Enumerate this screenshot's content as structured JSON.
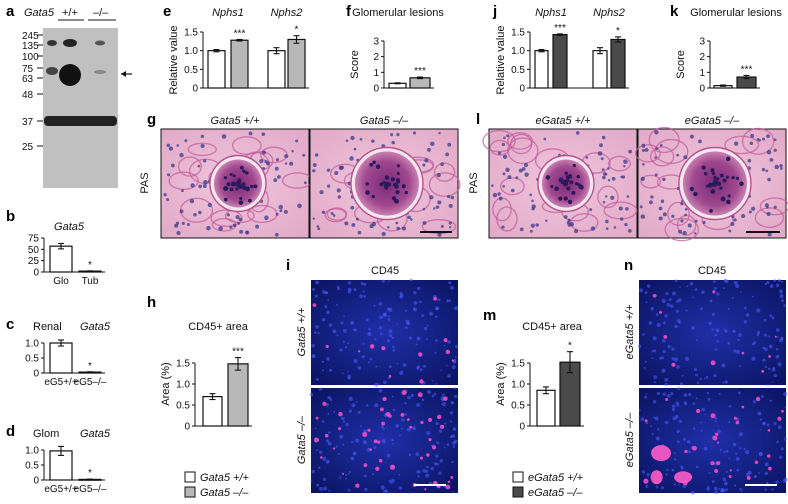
{
  "panels": {
    "a": {
      "label": "a",
      "genotype": "Gata5",
      "col_wt": "+/+",
      "col_ko": "–/–",
      "markers": [
        "245",
        "135",
        "100",
        "75",
        "63",
        "48",
        "37",
        "25"
      ]
    },
    "b": {
      "label": "b"
    },
    "c": {
      "label": "c"
    },
    "d": {
      "label": "d"
    },
    "e": {
      "label": "e"
    },
    "f": {
      "label": "f"
    },
    "g": {
      "label": "g",
      "side_label": "PAS",
      "img_left": "Gata5 +/+",
      "img_right": "Gata5 –/–"
    },
    "h": {
      "label": "h"
    },
    "i": {
      "label": "i",
      "title": "CD45",
      "row_top": "Gata5 +/+",
      "row_bottom": "Gata5 –/–"
    },
    "j": {
      "label": "j"
    },
    "k": {
      "label": "k"
    },
    "l": {
      "label": "l",
      "side_label": "PAS",
      "img_left": "eGata5 +/+",
      "img_right": "eGata5 –/–"
    },
    "m": {
      "label": "m"
    },
    "n": {
      "label": "n",
      "title": "CD45",
      "row_top": "eGata5 +/+",
      "row_bottom": "eGata5 –/–"
    }
  },
  "legend_h": [
    {
      "label": "Gata5 +/+",
      "color": "#ffffff"
    },
    {
      "label": "Gata5 –/–",
      "color": "#b8b8b8"
    }
  ],
  "legend_m": [
    {
      "label": "eGata5 +/+",
      "color": "#ffffff"
    },
    {
      "label": "eGata5 –/–",
      "color": "#4a4a4a"
    }
  ],
  "chart_data": [
    {
      "id": "b",
      "type": "bar",
      "title": "Gata5",
      "categories": [
        "Glo",
        "Tub"
      ],
      "values": [
        57,
        2
      ],
      "errors": [
        6,
        0.5
      ],
      "ylim": [
        0,
        75
      ],
      "yticks": [
        0,
        25,
        50,
        75
      ],
      "significance": [
        "",
        "*"
      ],
      "colors": [
        "#ffffff",
        "#ffffff"
      ]
    },
    {
      "id": "c",
      "type": "bar",
      "title": "Renal",
      "title_italic": "Gata5",
      "categories": [
        "eG5+/+",
        "eG5–/–"
      ],
      "values": [
        1.0,
        0.03
      ],
      "errors": [
        0.1,
        0.01
      ],
      "ylim": [
        0,
        1.0
      ],
      "yticks": [
        0,
        0.5,
        1.0
      ],
      "yticklabels": [
        "0",
        "0.5",
        "1.0"
      ],
      "significance": [
        "",
        "*"
      ],
      "colors": [
        "#ffffff",
        "#ffffff"
      ]
    },
    {
      "id": "d",
      "type": "bar",
      "title": "Glom",
      "title_italic": "Gata5",
      "categories": [
        "eG5+/+",
        "eG5–/–"
      ],
      "values": [
        0.97,
        0.02
      ],
      "errors": [
        0.15,
        0.01
      ],
      "ylim": [
        0,
        1.0
      ],
      "yticks": [
        0,
        0.5,
        1.0
      ],
      "yticklabels": [
        "0",
        "0.5",
        "1.0"
      ],
      "significance": [
        "",
        "*"
      ],
      "colors": [
        "#ffffff",
        "#ffffff"
      ]
    },
    {
      "id": "e",
      "type": "bar",
      "ylabel": "Relative value",
      "groups": [
        "Nphs1",
        "Nphs2"
      ],
      "series": [
        {
          "name": "+/+",
          "values": [
            1.0,
            1.0
          ],
          "errors": [
            0.03,
            0.08
          ]
        },
        {
          "name": "–/–",
          "values": [
            1.28,
            1.3
          ],
          "errors": [
            0.02,
            0.1
          ]
        }
      ],
      "ylim": [
        0,
        1.5
      ],
      "yticks": [
        0,
        0.5,
        1.0,
        1.5
      ],
      "yticklabels": [
        "0",
        "0.5",
        "1.0",
        "1.5"
      ],
      "significance": [
        "***",
        "*"
      ],
      "colors": [
        "#ffffff",
        "#b8b8b8"
      ]
    },
    {
      "id": "f",
      "type": "bar",
      "title": "Glomerular lesions",
      "ylabel": "Score",
      "values": [
        0.3,
        0.65
      ],
      "errors": [
        0.03,
        0.05
      ],
      "ylim": [
        0,
        3
      ],
      "yticks": [
        0,
        1,
        2,
        3
      ],
      "significance": [
        "",
        "***"
      ],
      "colors": [
        "#ffffff",
        "#b8b8b8"
      ]
    },
    {
      "id": "h",
      "type": "bar",
      "title": "CD45+ area",
      "ylabel": "Area (%)",
      "values": [
        0.7,
        1.48
      ],
      "errors": [
        0.07,
        0.15
      ],
      "ylim": [
        0,
        2.0
      ],
      "yticks": [
        0,
        0.5,
        1.0,
        1.5
      ],
      "yticklabels": [
        "0",
        "0.5",
        "1.0",
        "1.5"
      ],
      "significance": [
        "",
        "***"
      ],
      "colors": [
        "#ffffff",
        "#b8b8b8"
      ]
    },
    {
      "id": "j",
      "type": "bar",
      "ylabel": "Relative value",
      "groups": [
        "Nphs1",
        "Nphs2"
      ],
      "series": [
        {
          "name": "eGata5 +/+",
          "values": [
            1.0,
            1.0
          ],
          "errors": [
            0.03,
            0.08
          ]
        },
        {
          "name": "eGata5 –/–",
          "values": [
            1.43,
            1.3
          ],
          "errors": [
            0.02,
            0.07
          ]
        }
      ],
      "ylim": [
        0,
        1.5
      ],
      "yticks": [
        0,
        0.5,
        1.0,
        1.5
      ],
      "yticklabels": [
        "0",
        "0.5",
        "1.0",
        "1.5"
      ],
      "significance": [
        "***",
        "*"
      ],
      "colors": [
        "#ffffff",
        "#4a4a4a"
      ]
    },
    {
      "id": "k",
      "type": "bar",
      "title": "Glomerular lesions",
      "ylabel": "Score",
      "values": [
        0.15,
        0.7
      ],
      "errors": [
        0.04,
        0.1
      ],
      "ylim": [
        0,
        3
      ],
      "yticks": [
        0,
        1,
        2,
        3
      ],
      "significance": [
        "",
        "***"
      ],
      "colors": [
        "#ffffff",
        "#4a4a4a"
      ]
    },
    {
      "id": "m",
      "type": "bar",
      "title": "CD45+ area",
      "ylabel": "Area (%)",
      "values": [
        0.85,
        1.52
      ],
      "errors": [
        0.08,
        0.25
      ],
      "ylim": [
        0,
        2.0
      ],
      "yticks": [
        0,
        0.5,
        1.0,
        1.5
      ],
      "yticklabels": [
        "0",
        "0.5",
        "1.0",
        "1.5"
      ],
      "significance": [
        "",
        "*"
      ],
      "colors": [
        "#ffffff",
        "#4a4a4a"
      ]
    }
  ]
}
